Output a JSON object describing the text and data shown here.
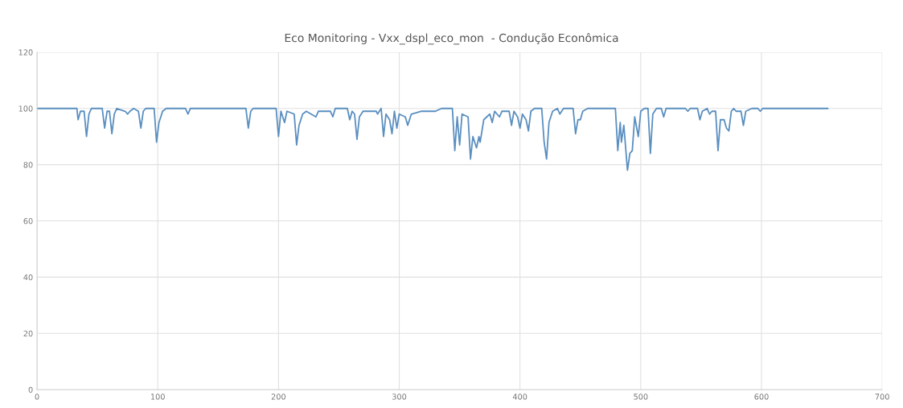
{
  "chart_data": {
    "type": "line",
    "title": "Eco Monitoring - Vxx_dspl_eco_mon  - Condução Econômica",
    "series": [
      {
        "color": "#5a8fc0",
        "x": [
          0,
          33,
          34,
          36,
          39,
          41,
          43,
          45,
          54,
          56,
          58,
          60,
          62,
          64,
          66,
          73,
          75,
          77,
          80,
          84,
          86,
          88,
          90,
          97,
          99,
          101,
          104,
          107,
          123,
          125,
          127,
          173,
          175,
          177,
          179,
          198,
          200,
          202,
          205,
          207,
          213,
          215,
          217,
          220,
          223,
          231,
          233,
          243,
          245,
          247,
          257,
          259,
          261,
          263,
          265,
          267,
          270,
          281,
          282,
          285,
          287,
          289,
          292,
          294,
          296,
          298,
          300,
          305,
          307,
          310,
          318,
          330,
          335,
          344,
          346,
          348,
          350,
          352,
          357,
          359,
          361,
          364,
          366,
          367,
          370,
          375,
          377,
          379,
          383,
          385,
          391,
          393,
          395,
          398,
          400,
          402,
          405,
          407,
          409,
          412,
          418,
          420,
          422,
          424,
          427,
          431,
          433,
          436,
          444,
          446,
          448,
          450,
          452,
          456,
          479,
          481,
          483,
          484,
          486,
          489,
          491,
          493,
          495,
          498,
          500,
          503,
          506,
          508,
          510,
          513,
          517,
          519,
          521,
          537,
          539,
          541,
          547,
          549,
          551,
          555,
          557,
          559,
          562,
          564,
          566,
          569,
          571,
          573,
          575,
          577,
          579,
          583,
          585,
          587,
          592,
          597,
          599,
          601,
          655
        ],
        "values": [
          100,
          100,
          96,
          99,
          99,
          90,
          98,
          100,
          100,
          93,
          99,
          99,
          91,
          98,
          100,
          99,
          98,
          99,
          100,
          99,
          93,
          99,
          100,
          100,
          88,
          95,
          99,
          100,
          100,
          98,
          100,
          100,
          93,
          99,
          100,
          100,
          90,
          99,
          95,
          99,
          98,
          87,
          94,
          98,
          99,
          97,
          99,
          99,
          97,
          100,
          100,
          96,
          99,
          98,
          89,
          97,
          99,
          99,
          98,
          100,
          90,
          98,
          96,
          91,
          99,
          93,
          98,
          97,
          94,
          98,
          99,
          99,
          100,
          100,
          85,
          97,
          87,
          98,
          97,
          82,
          90,
          86,
          90,
          88,
          96,
          98,
          95,
          99,
          97,
          99,
          99,
          94,
          99,
          97,
          93,
          98,
          96,
          92,
          99,
          100,
          100,
          88,
          82,
          95,
          99,
          100,
          98,
          100,
          100,
          91,
          96,
          96,
          99,
          100,
          100,
          85,
          95,
          88,
          94,
          78,
          84,
          85,
          97,
          90,
          99,
          100,
          100,
          84,
          98,
          100,
          100,
          97,
          100,
          100,
          99,
          100,
          100,
          96,
          99,
          100,
          98,
          99,
          99,
          85,
          96,
          96,
          93,
          92,
          99,
          100,
          99,
          99,
          94,
          99,
          100,
          100,
          99,
          100,
          100
        ]
      }
    ],
    "xlim": [
      0,
      700
    ],
    "xticks": [
      0,
      100,
      200,
      300,
      400,
      500,
      600,
      700
    ],
    "ylim": [
      0,
      120
    ],
    "yticks": [
      0,
      20,
      40,
      60,
      80,
      100,
      120
    ],
    "grid": true,
    "marker": "none",
    "line_style": "solid",
    "legend": false
  }
}
